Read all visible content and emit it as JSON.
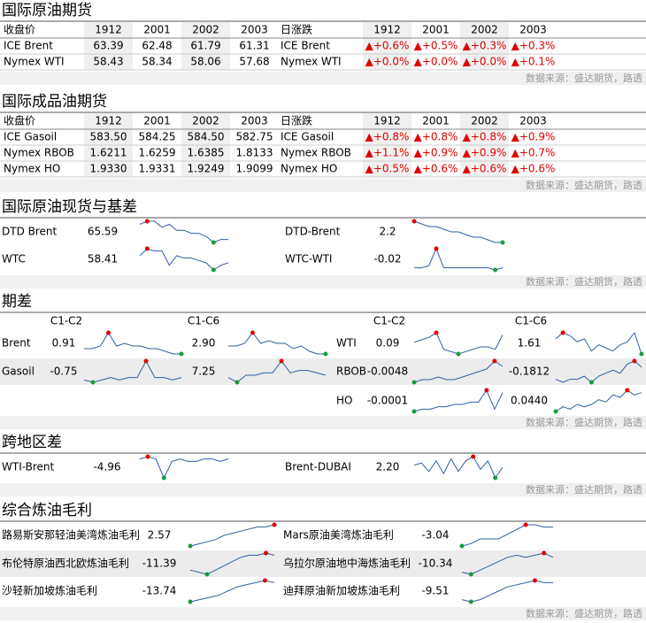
{
  "source": "数据来源：盛达期货，路透",
  "crude_futures": {
    "title": "国际原油期货",
    "header": [
      "收盘价",
      "1912",
      "2001",
      "2002",
      "2003",
      "日涨跌",
      "1912",
      "2001",
      "2002",
      "2003"
    ],
    "rows": [
      [
        "ICE Brent",
        "63.39",
        "62.48",
        "61.79",
        "61.31",
        "ICE Brent",
        "▲+0.6%",
        "▲+0.5%",
        "▲+0.3%",
        "▲+0.3%"
      ],
      [
        "Nymex WTI",
        "58.43",
        "58.34",
        "58.06",
        "57.68",
        "Nymex WTI",
        "▲+0.0%",
        "▲+0.0%",
        "▲+0.0%",
        "▲+0.1%"
      ]
    ]
  },
  "product_futures": {
    "title": "国际成品油期货",
    "header": [
      "收盘价",
      "1912",
      "2001",
      "2002",
      "2003",
      "日涨跌",
      "1912",
      "2001",
      "2002",
      "2003"
    ],
    "rows": [
      [
        "ICE Gasoil",
        "583.50",
        "584.25",
        "584.50",
        "582.75",
        "ICE Gasoil",
        "▲+0.8%",
        "▲+0.8%",
        "▲+0.8%",
        "▲+0.9%"
      ],
      [
        "Nymex RBOB",
        "1.6211",
        "1.6259",
        "1.6385",
        "1.8133",
        "Nymex RBOB",
        "▲+1.1%",
        "▲+0.9%",
        "▲+0.9%",
        "▲+0.7%"
      ],
      [
        "Nymex HO",
        "1.9330",
        "1.9331",
        "1.9249",
        "1.9099",
        "Nymex HO",
        "▲+0.5%",
        "▲+0.6%",
        "▲+0.6%",
        "▲+0.6%"
      ]
    ]
  },
  "spot_basis": {
    "title": "国际原油现货与基差",
    "left": {
      "rows": [
        {
          "label": "DTD Brent",
          "values": [
            "65.59"
          ],
          "sparks": [
            [
              8,
              9,
              9,
              7,
              8,
              6,
              6,
              5,
              5,
              4,
              2,
              3,
              3
            ]
          ]
        },
        {
          "label": "WTC",
          "values": [
            "58.41"
          ],
          "sparks": [
            [
              6,
              9,
              8,
              8,
              2,
              6,
              5,
              5,
              4,
              3,
              0,
              2,
              3
            ]
          ]
        }
      ]
    },
    "right": {
      "rows": [
        {
          "label": "DTD-Brent",
          "values": [
            "2.2"
          ],
          "sparks": [
            [
              9,
              8,
              7,
              7,
              6,
              5,
              5,
              4,
              3,
              3,
              2,
              1,
              1
            ]
          ]
        },
        {
          "label": "WTC-WTI",
          "values": [
            "-0.02"
          ],
          "sparks": [
            [
              1,
              1,
              2,
              10,
              1,
              1,
              1,
              1,
              1,
              1,
              1,
              0,
              1
            ]
          ]
        }
      ]
    }
  },
  "spreads": {
    "title": "期差",
    "left": {
      "headers": [
        "C1-C2",
        "C1-C6"
      ],
      "rows": [
        {
          "label": "Brent",
          "values": [
            "0.91",
            "2.90"
          ],
          "sparks": [
            [
              3,
              3,
              4,
              9,
              4,
              5,
              4,
              4,
              3,
              3,
              2,
              1,
              1
            ],
            [
              4,
              4,
              5,
              9,
              5,
              6,
              5,
              5,
              3,
              4,
              2,
              1,
              1
            ]
          ]
        },
        {
          "label": "Gasoil",
          "values": [
            "-0.75",
            "7.25"
          ],
          "sparks": [
            [
              2,
              1,
              2,
              3,
              2,
              3,
              3,
              10,
              3,
              3,
              2,
              3
            ],
            [
              2,
              0,
              3,
              3,
              4,
              4,
              9,
              4,
              5,
              5,
              4,
              3
            ]
          ]
        }
      ]
    },
    "right": {
      "headers": [
        "C1-C2",
        "C1-C6"
      ],
      "rows": [
        {
          "label": "WTI",
          "values": [
            "0.09",
            "1.61"
          ],
          "sparks": [
            [
              6,
              7,
              8,
              10,
              3,
              2,
              1,
              2,
              3,
              4,
              4,
              3,
              9
            ],
            [
              7,
              9,
              8,
              6,
              7,
              3,
              5,
              4,
              3,
              5,
              6,
              9,
              2
            ]
          ]
        },
        {
          "label": "RBOB",
          "values": [
            "-0.0048",
            "-0.1812"
          ],
          "sparks": [
            [
              2,
              3,
              3,
              4,
              3,
              3,
              4,
              5,
              6,
              7,
              10,
              8
            ],
            [
              4,
              3,
              4,
              4,
              5,
              3,
              5,
              6,
              7,
              6,
              9,
              10,
              8
            ]
          ]
        },
        {
          "label": "HO",
          "values": [
            "-0.0001",
            "0.0440"
          ],
          "sparks": [
            [
              1,
              2,
              2,
              3,
              3,
              4,
              4,
              5,
              5,
              10,
              2,
              9
            ],
            [
              0,
              2,
              1,
              3,
              2,
              3,
              5,
              4,
              7,
              6,
              9,
              7,
              8
            ]
          ]
        }
      ]
    }
  },
  "cross_region": {
    "title": "跨地区差",
    "left": {
      "rows": [
        {
          "label": "WTI-Brent",
          "values": [
            "-4.96"
          ],
          "sparks": [
            [
              8,
              9,
              8,
              0,
              7,
              8,
              7,
              7,
              8,
              8,
              7,
              8
            ]
          ]
        }
      ]
    },
    "right": {
      "rows": [
        {
          "label": "Brent-DUBAI",
          "values": [
            "2.20"
          ],
          "sparks": [
            [
              6,
              7,
              3,
              8,
              2,
              9,
              3,
              8,
              10,
              4,
              8,
              0,
              5
            ]
          ]
        }
      ]
    }
  },
  "margins": {
    "title": "综合炼油毛利",
    "left": {
      "rows": [
        {
          "label": "路易斯安那轻油美湾炼油毛利",
          "values": [
            "2.57"
          ],
          "sparks": [
            [
              0,
              1,
              2,
              3,
              5,
              6,
              7,
              8,
              9,
              9,
              10
            ]
          ]
        },
        {
          "label": "布伦特原油西北欧炼油毛利",
          "values": [
            "-11.39"
          ],
          "sparks": [
            [
              2,
              1,
              0,
              2,
              4,
              6,
              8,
              9,
              9,
              10,
              9
            ]
          ]
        },
        {
          "label": "沙轻新加坡炼油毛利",
          "values": [
            "-13.74"
          ],
          "sparks": [
            [
              0,
              1,
              2,
              3,
              5,
              7,
              8,
              9,
              10,
              9
            ]
          ]
        }
      ]
    },
    "right": {
      "rows": [
        {
          "label": "Mars原油美湾炼油毛利",
          "values": [
            "-3.04"
          ],
          "sparks": [
            [
              0,
              1,
              3,
              3,
              3,
              5,
              7,
              9,
              9,
              8,
              8
            ]
          ]
        },
        {
          "label": "乌拉尔原油地中海炼油毛利",
          "values": [
            "-10.34"
          ],
          "sparks": [
            [
              1,
              0,
              2,
              4,
              6,
              8,
              9,
              8,
              9,
              10,
              8
            ]
          ]
        },
        {
          "label": "迪拜原油新加坡炼油毛利",
          "values": [
            "-9.51"
          ],
          "sparks": [
            [
              1,
              0,
              1,
              3,
              5,
              7,
              8,
              9,
              10,
              9,
              9
            ]
          ]
        }
      ]
    }
  }
}
